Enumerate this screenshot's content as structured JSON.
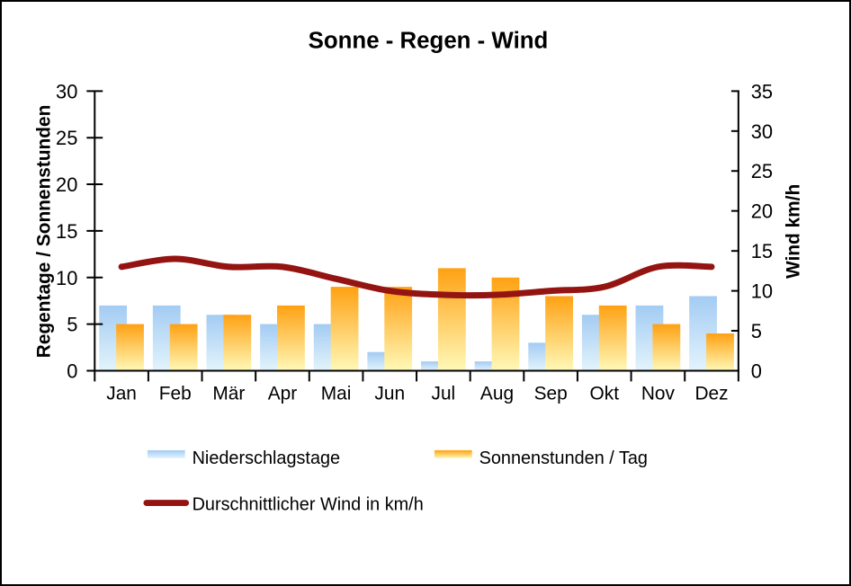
{
  "title": "Sonne - Regen - Wind",
  "left_axis": {
    "title": "Regentage / Sonnenstunden",
    "ticks": [
      0,
      5,
      10,
      15,
      20,
      25,
      30
    ],
    "min": 0,
    "max": 30
  },
  "right_axis": {
    "title": "Wind km/h",
    "ticks": [
      0,
      5,
      10,
      15,
      20,
      25,
      30,
      35
    ],
    "min": 0,
    "max": 35
  },
  "colors": {
    "background": "#FFFFFF",
    "frame_border": "#000000",
    "text": "#000000",
    "rain_bar_top": "#A3CBF3",
    "rain_bar_bottom": "#E3F4FC",
    "sun_bar_top": "#FFA113",
    "sun_bar_bottom": "#FFF9B8",
    "wind_line": "#941412"
  },
  "chart_data": {
    "type": "combo: bar + smoothed line",
    "title": "Sonne - Regen - Wind",
    "categories": [
      "Jan",
      "Feb",
      "Mär",
      "Apr",
      "Mai",
      "Jun",
      "Jul",
      "Aug",
      "Sep",
      "Okt",
      "Nov",
      "Dez"
    ],
    "series": [
      {
        "name": "Niederschlagstage",
        "type": "bar",
        "axis": "left",
        "values": [
          7,
          7,
          6,
          5,
          5,
          2,
          1,
          1,
          3,
          6,
          7,
          8
        ],
        "color_top": "#A3CBF3",
        "color_bottom": "#E3F4FC"
      },
      {
        "name": "Sonnenstunden / Tag",
        "type": "bar",
        "axis": "left",
        "values": [
          5,
          5,
          6,
          7,
          9,
          9,
          11,
          10,
          8,
          7,
          5,
          4
        ],
        "color_top": "#FFA113",
        "color_bottom": "#FFF9B8"
      },
      {
        "name": "Durschnittlicher Wind in km/h",
        "type": "line",
        "axis": "right",
        "smoothed": true,
        "values": [
          13,
          14,
          13,
          13,
          11.5,
          10,
          9.5,
          9.5,
          10,
          10.5,
          13,
          13
        ],
        "color": "#941412"
      }
    ],
    "ylabel_left": "Regentage / Sonnenstunden",
    "ylabel_right": "Wind km/h",
    "ylim_left": [
      0,
      30
    ],
    "ylim_right": [
      0,
      35
    ],
    "grid": false,
    "legend_position": "bottom"
  }
}
